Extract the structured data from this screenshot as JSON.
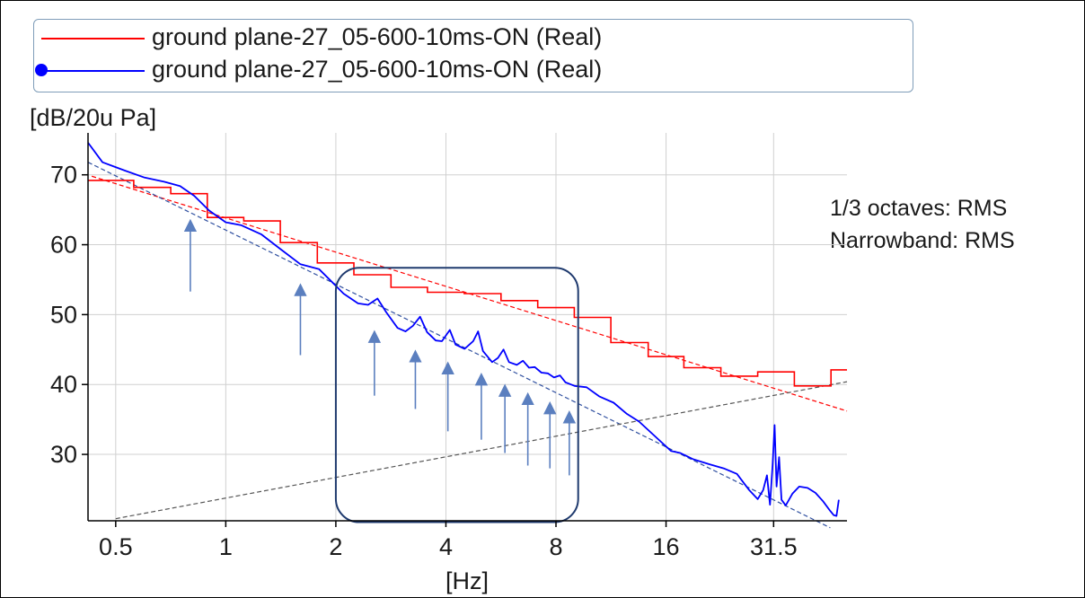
{
  "legend": {
    "entries": [
      {
        "label": "ground plane-27_05-600-10ms-ON (Real)",
        "color": "#ff0000",
        "marker": "none"
      },
      {
        "label": "ground plane-27_05-600-10ms-ON (Real)",
        "color": "#0000ff",
        "marker": "circle"
      }
    ]
  },
  "annotations": {
    "note_1": "1/3 octaves: RMS",
    "note_2": "Narrowband: RMS"
  },
  "chart_data": {
    "type": "line",
    "title": "",
    "ylabel": "[dB/20u Pa]",
    "xlabel": "[Hz]",
    "x_scale": "log2",
    "xlim": [
      0.42,
      50
    ],
    "ylim": [
      20.5,
      76
    ],
    "x_ticks": [
      {
        "value": 0.5,
        "label": "0.5"
      },
      {
        "value": 1,
        "label": "1"
      },
      {
        "value": 2,
        "label": "2"
      },
      {
        "value": 4,
        "label": "4"
      },
      {
        "value": 8,
        "label": "8"
      },
      {
        "value": 16,
        "label": "16"
      },
      {
        "value": 31.5,
        "label": "31.5"
      }
    ],
    "y_ticks": [
      {
        "value": 30,
        "label": "30"
      },
      {
        "value": 40,
        "label": "40"
      },
      {
        "value": 50,
        "label": "50"
      },
      {
        "value": 60,
        "label": "60"
      },
      {
        "value": 70,
        "label": "70"
      }
    ],
    "grid": true,
    "series": [
      {
        "name": "ground plane-27_05-600-10ms-ON (Real)",
        "kind": "step",
        "color": "#ff0000",
        "bands": [
          {
            "f_start": 0.42,
            "f_end": 0.56,
            "value": 69.2
          },
          {
            "f_start": 0.56,
            "f_end": 0.707,
            "value": 68.2
          },
          {
            "f_start": 0.707,
            "f_end": 0.89,
            "value": 67.3
          },
          {
            "f_start": 0.89,
            "f_end": 1.12,
            "value": 63.9
          },
          {
            "f_start": 1.12,
            "f_end": 1.41,
            "value": 63.4
          },
          {
            "f_start": 1.41,
            "f_end": 1.78,
            "value": 60.3
          },
          {
            "f_start": 1.78,
            "f_end": 2.24,
            "value": 57.4
          },
          {
            "f_start": 2.24,
            "f_end": 2.83,
            "value": 55.7
          },
          {
            "f_start": 2.83,
            "f_end": 3.56,
            "value": 53.9
          },
          {
            "f_start": 3.56,
            "f_end": 4.49,
            "value": 53.2
          },
          {
            "f_start": 4.49,
            "f_end": 5.66,
            "value": 53.0
          },
          {
            "f_start": 5.66,
            "f_end": 7.13,
            "value": 52.0
          },
          {
            "f_start": 7.13,
            "f_end": 8.98,
            "value": 51.0
          },
          {
            "f_start": 8.98,
            "f_end": 11.3,
            "value": 49.6
          },
          {
            "f_start": 11.3,
            "f_end": 14.3,
            "value": 46.0
          },
          {
            "f_start": 14.3,
            "f_end": 17.9,
            "value": 44.0
          },
          {
            "f_start": 17.9,
            "f_end": 22.6,
            "value": 42.4
          },
          {
            "f_start": 22.6,
            "f_end": 28.5,
            "value": 41.2
          },
          {
            "f_start": 28.5,
            "f_end": 35.9,
            "value": 41.8
          },
          {
            "f_start": 35.9,
            "f_end": 45.2,
            "value": 39.8
          },
          {
            "f_start": 45.2,
            "f_end": 50,
            "value": 42.1
          }
        ]
      },
      {
        "name": "ground plane-27_05-600-10ms-ON (Real)",
        "kind": "line",
        "color": "#0000ff",
        "points": [
          [
            0.42,
            74.6
          ],
          [
            0.46,
            71.8
          ],
          [
            0.53,
            70.6
          ],
          [
            0.6,
            69.6
          ],
          [
            0.68,
            69.0
          ],
          [
            0.75,
            68.4
          ],
          [
            0.82,
            67.0
          ],
          [
            0.9,
            64.9
          ],
          [
            1.0,
            63.2
          ],
          [
            1.1,
            62.8
          ],
          [
            1.25,
            61.5
          ],
          [
            1.4,
            59.5
          ],
          [
            1.6,
            57.2
          ],
          [
            1.8,
            56.5
          ],
          [
            1.95,
            54.7
          ],
          [
            2.1,
            53.0
          ],
          [
            2.3,
            51.6
          ],
          [
            2.45,
            51.4
          ],
          [
            2.6,
            52.3
          ],
          [
            2.75,
            50.3
          ],
          [
            2.95,
            48.1
          ],
          [
            3.1,
            47.6
          ],
          [
            3.25,
            48.4
          ],
          [
            3.4,
            49.7
          ],
          [
            3.55,
            47.5
          ],
          [
            3.75,
            46.3
          ],
          [
            3.9,
            46.2
          ],
          [
            4.1,
            47.8
          ],
          [
            4.25,
            45.7
          ],
          [
            4.5,
            45.1
          ],
          [
            4.75,
            46.2
          ],
          [
            4.9,
            47.6
          ],
          [
            5.05,
            44.8
          ],
          [
            5.35,
            43.2
          ],
          [
            5.55,
            43.8
          ],
          [
            5.75,
            45.0
          ],
          [
            5.95,
            43.2
          ],
          [
            6.25,
            42.8
          ],
          [
            6.5,
            43.4
          ],
          [
            6.75,
            42.4
          ],
          [
            7.0,
            42.5
          ],
          [
            7.3,
            41.7
          ],
          [
            7.6,
            41.6
          ],
          [
            7.9,
            41.0
          ],
          [
            8.2,
            41.3
          ],
          [
            8.5,
            40.3
          ],
          [
            9.0,
            39.8
          ],
          [
            9.7,
            39.6
          ],
          [
            10.5,
            38.3
          ],
          [
            11.5,
            37.4
          ],
          [
            12.5,
            35.8
          ],
          [
            13.5,
            34.7
          ],
          [
            14.5,
            33.2
          ],
          [
            15.5,
            31.8
          ],
          [
            16.5,
            30.5
          ],
          [
            17.5,
            30.2
          ],
          [
            19,
            29.3
          ],
          [
            21,
            28.6
          ],
          [
            23,
            28.0
          ],
          [
            25,
            27.2
          ],
          [
            27,
            24.9
          ],
          [
            28.5,
            23.6
          ],
          [
            29.5,
            24.9
          ],
          [
            30.2,
            27.0
          ],
          [
            30.8,
            22.8
          ],
          [
            31.3,
            28.5
          ],
          [
            31.7,
            34.2
          ],
          [
            32.1,
            25.4
          ],
          [
            32.6,
            29.6
          ],
          [
            33.1,
            23.5
          ],
          [
            34,
            22.7
          ],
          [
            35.5,
            24.4
          ],
          [
            37,
            25.4
          ],
          [
            39,
            25.2
          ],
          [
            41,
            24.5
          ],
          [
            43,
            23.3
          ],
          [
            45,
            21.9
          ],
          [
            46,
            21.3
          ],
          [
            46.8,
            21.2
          ],
          [
            47.5,
            23.5
          ]
        ]
      }
    ],
    "reference_lines": [
      {
        "style": "dashed",
        "color": "#ff0000",
        "from": [
          0.43,
          69.8
        ],
        "to": [
          50,
          36.2
        ]
      },
      {
        "style": "dashed",
        "color": "#3050a0",
        "from": [
          0.42,
          71.8
        ],
        "to": [
          45,
          19.5
        ]
      },
      {
        "style": "dashed",
        "color": "#555555",
        "from": [
          0.5,
          20.8
        ],
        "to": [
          50,
          40.4
        ]
      }
    ],
    "highlight_box": {
      "x": [
        2.0,
        9.2
      ],
      "y": [
        20.3,
        56.7
      ],
      "color": "#1f3a6e"
    },
    "arrows": [
      {
        "x": 0.8,
        "y_from": 53.3,
        "y_to": 63.8
      },
      {
        "x": 1.6,
        "y_from": 44.2,
        "y_to": 54.6
      },
      {
        "x": 2.55,
        "y_from": 38.4,
        "y_to": 47.9
      },
      {
        "x": 3.3,
        "y_from": 36.5,
        "y_to": 45.1
      },
      {
        "x": 4.05,
        "y_from": 33.3,
        "y_to": 43.4
      },
      {
        "x": 5.0,
        "y_from": 32.1,
        "y_to": 41.8
      },
      {
        "x": 5.8,
        "y_from": 30.2,
        "y_to": 40.2
      },
      {
        "x": 6.7,
        "y_from": 28.4,
        "y_to": 39.0
      },
      {
        "x": 7.7,
        "y_from": 28.0,
        "y_to": 37.7
      },
      {
        "x": 8.7,
        "y_from": 27.0,
        "y_to": 36.4
      }
    ],
    "arrow_color": "#5b7fbf"
  }
}
